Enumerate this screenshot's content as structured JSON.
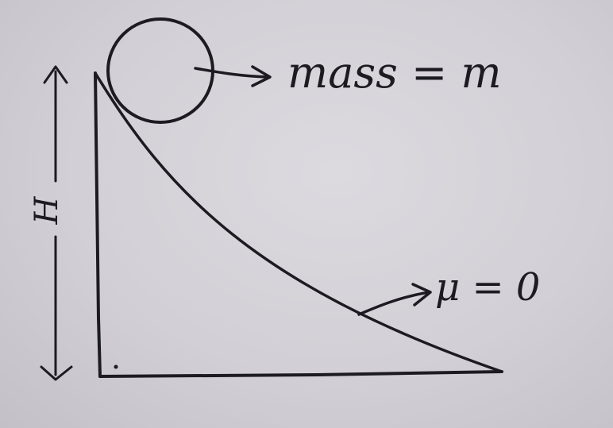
{
  "labels": {
    "mass": "mass = m",
    "friction": "μ = 0",
    "height": "H"
  },
  "colors": {
    "paper": "#d6d4da",
    "ink": "#1d1b22"
  }
}
